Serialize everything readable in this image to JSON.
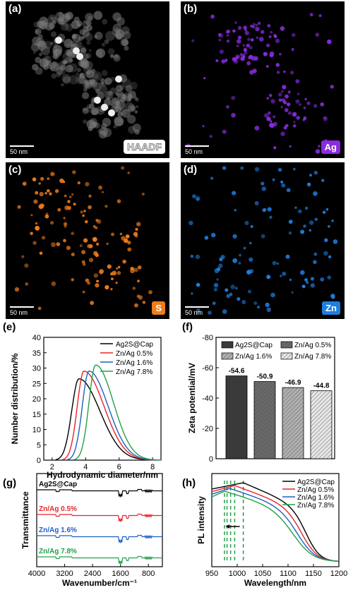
{
  "panel_labels": {
    "a": "(a)",
    "b": "(b)",
    "c": "(c)",
    "d": "(d)",
    "e": "(e)",
    "f": "(f)",
    "g": "(g)",
    "h": "(h)"
  },
  "maps": {
    "scale_text": "50 nm",
    "haadf_tag": "HAADF",
    "ag_tag": "Ag",
    "s_tag": "S",
    "zn_tag": "Zn",
    "colors": {
      "ag": "#8a2be2",
      "s": "#f07d1a",
      "zn": "#1e7fe0"
    }
  },
  "series_names": [
    "Ag2S@Cap",
    "Zn/Ag 0.5%",
    "Zn/Ag 1.6%",
    "Zn/Ag 7.8%"
  ],
  "series_colors": [
    "#000000",
    "#e8232a",
    "#1f5fc4",
    "#22a04b"
  ],
  "chart_data": [
    {
      "panel": "e",
      "type": "line",
      "xlabel": "Hydrodynamic diameter/nm",
      "ylabel": "Number distribution/%",
      "xlim": [
        1.5,
        8.5
      ],
      "ylim": [
        0,
        40
      ],
      "xticks": [
        2,
        4,
        6,
        8
      ],
      "yticks": [
        0,
        5,
        10,
        15,
        20,
        25,
        30,
        35,
        40
      ],
      "series": [
        {
          "name": "Ag2S@Cap",
          "peak_x": 3.6,
          "peak_y": 26.5,
          "start": 2.2,
          "end": 8.2
        },
        {
          "name": "Zn/Ag 0.5%",
          "peak_x": 3.9,
          "peak_y": 29,
          "start": 2.6,
          "end": 8.3
        },
        {
          "name": "Zn/Ag 1.6%",
          "peak_x": 4.2,
          "peak_y": 29,
          "start": 2.9,
          "end": 8.4
        },
        {
          "name": "Zn/Ag 7.8%",
          "peak_x": 4.6,
          "peak_y": 31,
          "start": 3.3,
          "end": 8.5
        }
      ]
    },
    {
      "panel": "f",
      "type": "bar",
      "ylabel": "Zeta potential/mV",
      "ylim": [
        0,
        -80
      ],
      "yticks": [
        0,
        -20,
        -40,
        -60,
        -80
      ],
      "categories": [
        "Ag2S@Cap",
        "Zn/Ag 0.5%",
        "Zn/Ag 1.6%",
        "Zn/Ag 7.8%"
      ],
      "values": [
        -54.6,
        -50.9,
        -46.9,
        -44.8
      ],
      "value_labels": [
        "-54.6",
        "-50.9",
        "-46.9",
        "-44.8"
      ]
    },
    {
      "panel": "g",
      "type": "line",
      "xlabel": "Wavenumber/cm⁻¹",
      "ylabel": "Transmittance",
      "xlim": [
        4000,
        400
      ],
      "xticks": [
        4000,
        3200,
        2400,
        1600,
        800
      ],
      "series_labels": [
        "Ag2S@Cap",
        "Zn/Ag 0.5%",
        "Zn/Ag 1.6%",
        "Zn/Ag 7.8%"
      ]
    },
    {
      "panel": "h",
      "type": "line",
      "xlabel": "Wavelength/nm",
      "ylabel": "PL intensity",
      "xlim": [
        950,
        1200
      ],
      "xticks": [
        950,
        1000,
        1050,
        1100,
        1150,
        1200
      ],
      "series": [
        {
          "name": "Ag2S@Cap",
          "peak_x": 1012
        },
        {
          "name": "Zn/Ag 0.5%",
          "peak_x": 995
        },
        {
          "name": "Zn/Ag 1.6%",
          "peak_x": 985
        },
        {
          "name": "Zn/Ag 7.8%",
          "peak_x": 975
        }
      ],
      "dashed_lines_x": [
        975,
        980,
        987,
        995,
        1012
      ]
    }
  ]
}
